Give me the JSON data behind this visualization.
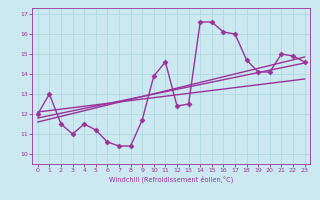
{
  "title": "",
  "xlabel": "Windchill (Refroidissement éolien,°C)",
  "ylabel": "",
  "xlim": [
    -0.5,
    23.5
  ],
  "ylim": [
    9.5,
    17.3
  ],
  "yticks": [
    10,
    11,
    12,
    13,
    14,
    15,
    16,
    17
  ],
  "xticks": [
    0,
    1,
    2,
    3,
    4,
    5,
    6,
    7,
    8,
    9,
    10,
    11,
    12,
    13,
    14,
    15,
    16,
    17,
    18,
    19,
    20,
    21,
    22,
    23
  ],
  "bg_color": "#cce8f0",
  "grid_color": "#aad4de",
  "line_color": "#993399",
  "line1_x": [
    0,
    1,
    2,
    3,
    4,
    5,
    6,
    7,
    8,
    9,
    10,
    11,
    12,
    13,
    14,
    15,
    16,
    17,
    18,
    19,
    20,
    21,
    22,
    23
  ],
  "line1_y": [
    12.0,
    13.0,
    11.5,
    11.0,
    11.5,
    11.2,
    10.6,
    10.4,
    10.4,
    11.7,
    13.9,
    14.6,
    12.4,
    12.5,
    16.6,
    16.6,
    16.1,
    16.0,
    14.7,
    14.1,
    14.1,
    15.0,
    14.9,
    14.6
  ],
  "line2_x": [
    0,
    23
  ],
  "line2_y": [
    11.8,
    14.55
  ],
  "line3_x": [
    0,
    23
  ],
  "line3_y": [
    11.6,
    14.85
  ],
  "line4_x": [
    0,
    23
  ],
  "line4_y": [
    12.1,
    13.75
  ],
  "marker": "D",
  "markersize": 2.5,
  "linewidth": 1.0
}
